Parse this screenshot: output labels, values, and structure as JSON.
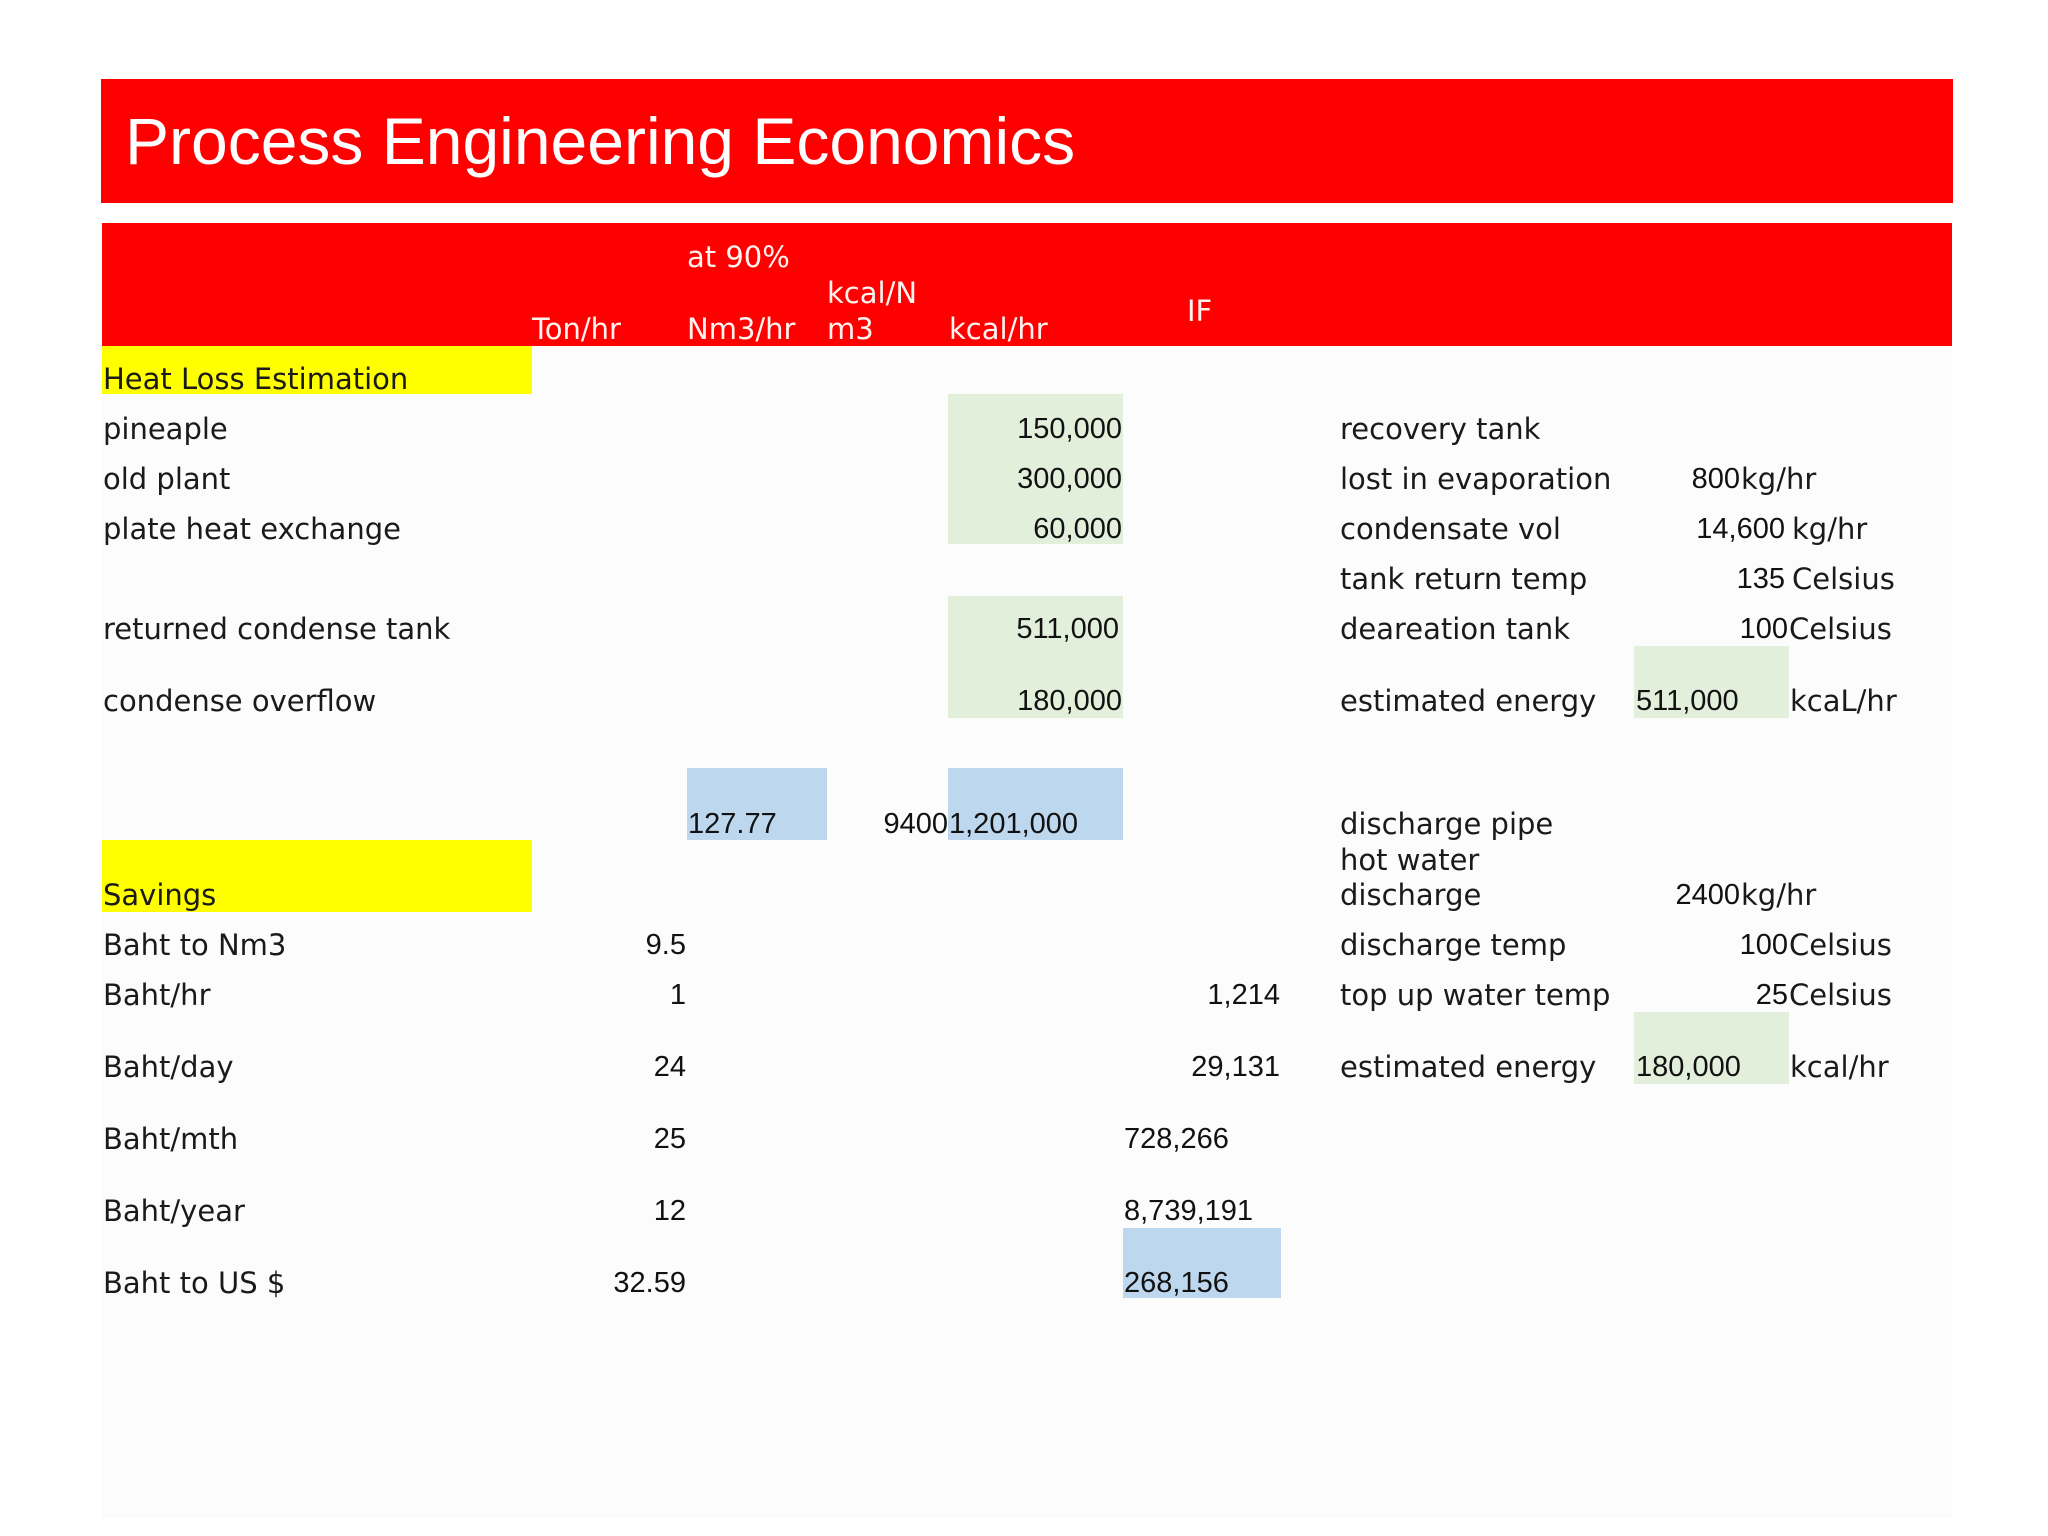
{
  "title": "Process Engineering Economics",
  "header": {
    "ton_hr": "Ton/hr",
    "at_90": "at 90%",
    "nm3_hr": "Nm3/hr",
    "kcal_n_line1": "kcal/N",
    "kcal_n_line2": "m3",
    "kcal_hr": "kcal/hr",
    "if": "IF"
  },
  "sections": {
    "heat_loss": "Heat Loss Estimation",
    "savings": "Savings"
  },
  "heat_loss_rows": [
    {
      "label": "pineaple",
      "kcal_hr": "150,000"
    },
    {
      "label": "old plant",
      "kcal_hr": "300,000"
    },
    {
      "label": "plate heat exchange",
      "kcal_hr": "60,000"
    },
    {
      "label": "returned condense tank",
      "kcal_hr": "511,000"
    },
    {
      "label": "condense overflow",
      "kcal_hr": "180,000"
    }
  ],
  "totals": {
    "nm3_hr": "127.77",
    "kcal_per_nm3": "9400",
    "kcal_hr": "1,201,000"
  },
  "savings_rows": [
    {
      "label": "Baht to Nm3",
      "factor": "9.5",
      "value": ""
    },
    {
      "label": "Baht/hr",
      "factor": "1",
      "value": "1,214"
    },
    {
      "label": "Baht/day",
      "factor": "24",
      "value": "29,131"
    },
    {
      "label": "Baht/mth",
      "factor": "25",
      "value": "728,266"
    },
    {
      "label": "Baht/year",
      "factor": "12",
      "value": "8,739,191"
    },
    {
      "label": "Baht to US $",
      "factor": "32.59",
      "value": "268,156"
    }
  ],
  "recovery": {
    "heading": "recovery tank",
    "rows": [
      {
        "label": "lost in evaporation",
        "value": "800",
        "unit": "kg/hr"
      },
      {
        "label": "condensate vol",
        "value": "14,600",
        "unit": "kg/hr"
      },
      {
        "label": "tank return temp",
        "value": "135",
        "unit": "Celsius"
      },
      {
        "label": "deareation tank",
        "value": "100",
        "unit": "Celsius"
      },
      {
        "label": "estimated energy",
        "value": "511,000",
        "unit": "kcaL/hr"
      }
    ]
  },
  "discharge": {
    "heading": "discharge pipe",
    "rows": [
      {
        "label_line1": "hot water",
        "label_line2": "discharge",
        "value": "2400",
        "unit": "kg/hr"
      },
      {
        "label": "discharge temp",
        "value": "100",
        "unit": "Celsius"
      },
      {
        "label": "top up water temp",
        "value": "25",
        "unit": "Celsius"
      },
      {
        "label": "estimated energy",
        "value": "180,000",
        "unit": "kcal/hr"
      }
    ]
  },
  "colors": {
    "banner": "#ff0000",
    "section_highlight": "#ffff00",
    "input_cell": "#e2efda",
    "result_cell": "#bdd7ee"
  }
}
